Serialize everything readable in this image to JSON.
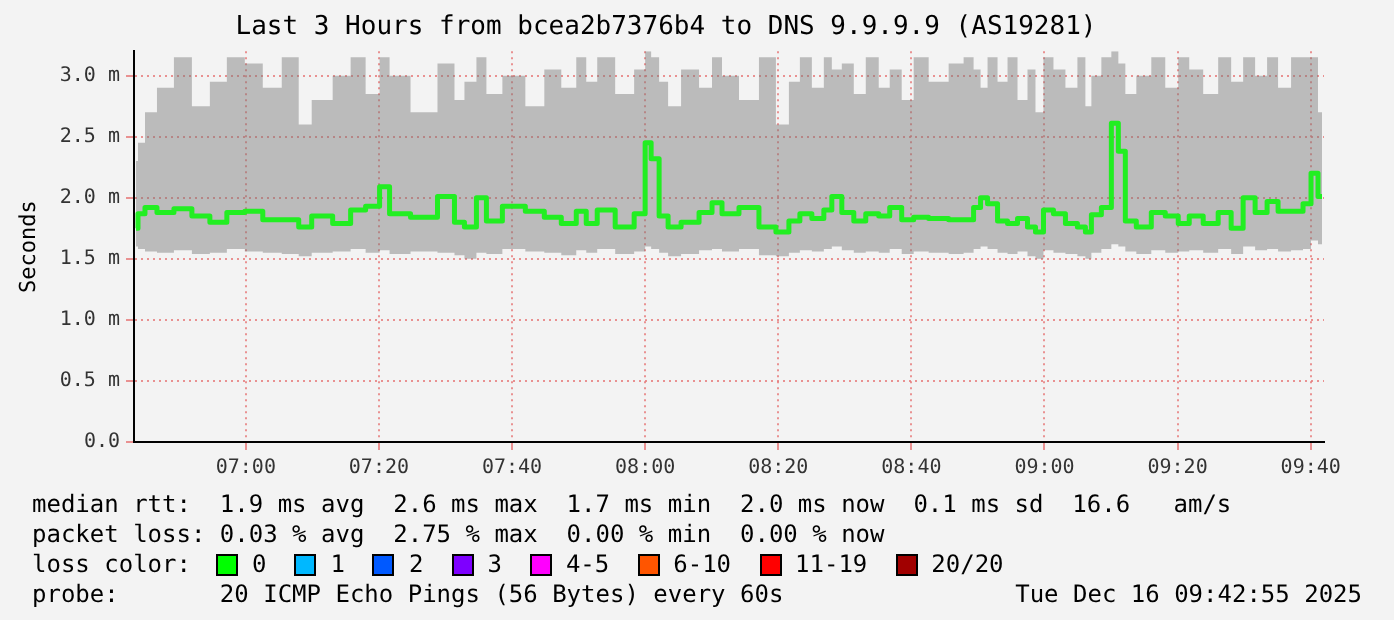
{
  "chart_data": {
    "type": "step",
    "title": "Last 3 Hours from bcea2b7376b4 to DNS 9.9.9.9 (AS19281)",
    "ylabel": "Seconds",
    "xlim": [
      6.72,
      9.7
    ],
    "xticks": [
      {
        "value": 7,
        "label": "07:00"
      },
      {
        "value": 7.3333,
        "label": "07:20"
      },
      {
        "value": 7.6667,
        "label": "07:40"
      },
      {
        "value": 8,
        "label": "08:00"
      },
      {
        "value": 8.3333,
        "label": "08:20"
      },
      {
        "value": 8.6667,
        "label": "08:40"
      },
      {
        "value": 9,
        "label": "09:00"
      },
      {
        "value": 9.3333,
        "label": "09:20"
      },
      {
        "value": 9.6667,
        "label": "09:40"
      }
    ],
    "ylim": [
      0,
      3.2
    ],
    "yticks": [
      {
        "value": 0,
        "label": "0.0"
      },
      {
        "value": 0.5,
        "label": "0.5 m"
      },
      {
        "value": 1,
        "label": "1.0 m"
      },
      {
        "value": 1.5,
        "label": "1.5 m"
      },
      {
        "value": 2,
        "label": "2.0 m"
      },
      {
        "value": 2.5,
        "label": "2.5 m"
      },
      {
        "value": 3,
        "label": "3.0 m"
      }
    ],
    "grid": true,
    "marker": "none",
    "x": [
      6.725,
      6.735,
      6.76,
      6.795,
      6.845,
      6.885,
      6.935,
      6.97,
      7.025,
      7.06,
      7.12,
      7.145,
      7.185,
      7.25,
      7.275,
      7.325,
      7.345,
      7.375,
      7.45,
      7.51,
      7.535,
      7.56,
      7.595,
      7.61,
      7.675,
      7.725,
      7.77,
      7.81,
      7.845,
      7.86,
      7.9,
      7.95,
      7.995,
      8.005,
      8.025,
      8.045,
      8.07,
      8.11,
      8.16,
      8.175,
      8.21,
      8.26,
      8.31,
      8.345,
      8.375,
      8.4,
      8.435,
      8.46,
      8.475,
      8.51,
      8.535,
      8.57,
      8.6,
      8.625,
      8.66,
      8.685,
      8.735,
      8.785,
      8.81,
      8.835,
      8.845,
      8.87,
      8.895,
      8.92,
      8.945,
      8.97,
      8.985,
      9.01,
      9.035,
      9.07,
      9.095,
      9.11,
      9.125,
      9.16,
      9.175,
      9.195,
      9.21,
      9.25,
      9.285,
      9.32,
      9.35,
      9.375,
      9.42,
      9.45,
      9.485,
      9.51,
      9.545,
      9.57,
      9.6,
      9.635,
      9.66,
      9.675,
      9.695
    ],
    "series": [
      {
        "color": "#22ee22",
        "values": [
          1.75,
          1.87,
          1.92,
          1.88,
          1.91,
          1.85,
          1.8,
          1.88,
          1.89,
          1.82,
          1.82,
          1.76,
          1.85,
          1.79,
          1.9,
          1.93,
          2.09,
          1.87,
          1.84,
          2.01,
          1.8,
          1.76,
          2,
          1.81,
          1.93,
          1.89,
          1.84,
          1.79,
          1.89,
          1.79,
          1.9,
          1.76,
          1.87,
          2.45,
          2.32,
          1.85,
          1.76,
          1.8,
          1.88,
          1.96,
          1.87,
          1.92,
          1.76,
          1.72,
          1.81,
          1.87,
          1.83,
          1.9,
          2.01,
          1.88,
          1.81,
          1.87,
          1.85,
          1.92,
          1.82,
          1.84,
          1.83,
          1.82,
          1.82,
          1.92,
          2,
          1.95,
          1.81,
          1.79,
          1.83,
          1.76,
          1.72,
          1.9,
          1.87,
          1.79,
          1.76,
          1.72,
          1.86,
          1.92,
          2.61,
          2.38,
          1.81,
          1.76,
          1.88,
          1.85,
          1.79,
          1.85,
          1.79,
          1.88,
          1.75,
          2,
          1.88,
          1.97,
          1.89,
          1.89,
          1.95,
          2.2,
          2.01
        ],
        "lower": [
          1.6,
          1.58,
          1.56,
          1.55,
          1.57,
          1.54,
          1.55,
          1.58,
          1.56,
          1.55,
          1.54,
          1.52,
          1.55,
          1.56,
          1.58,
          1.55,
          1.57,
          1.54,
          1.56,
          1.55,
          1.53,
          1.5,
          1.55,
          1.54,
          1.58,
          1.56,
          1.55,
          1.53,
          1.57,
          1.55,
          1.58,
          1.54,
          1.56,
          1.6,
          1.58,
          1.55,
          1.52,
          1.54,
          1.57,
          1.58,
          1.56,
          1.58,
          1.53,
          1.52,
          1.55,
          1.57,
          1.56,
          1.58,
          1.6,
          1.57,
          1.55,
          1.56,
          1.55,
          1.58,
          1.54,
          1.56,
          1.55,
          1.54,
          1.55,
          1.58,
          1.6,
          1.58,
          1.55,
          1.54,
          1.56,
          1.52,
          1.5,
          1.57,
          1.55,
          1.54,
          1.52,
          1.5,
          1.55,
          1.58,
          1.62,
          1.6,
          1.56,
          1.54,
          1.57,
          1.55,
          1.56,
          1.57,
          1.55,
          1.58,
          1.54,
          1.6,
          1.57,
          1.58,
          1.56,
          1.57,
          1.58,
          1.65,
          1.62
        ],
        "upper": [
          2.3,
          2.45,
          2.7,
          2.9,
          3.15,
          2.75,
          2.95,
          3.15,
          3.1,
          2.9,
          3.15,
          2.6,
          2.8,
          3,
          3.15,
          2.85,
          3.15,
          3,
          2.7,
          3.1,
          2.8,
          2.95,
          3.15,
          2.85,
          3,
          2.75,
          3.05,
          2.9,
          3.15,
          2.95,
          3.15,
          2.85,
          3.05,
          3.2,
          3.15,
          2.95,
          2.75,
          3.05,
          2.9,
          3.15,
          3,
          2.8,
          3.15,
          2.6,
          2.95,
          3.15,
          2.9,
          3.15,
          3.05,
          3.1,
          2.85,
          3.15,
          2.9,
          3.05,
          2.8,
          3.15,
          2.95,
          3.1,
          3.15,
          3.05,
          2.9,
          3.15,
          2.95,
          3.15,
          2.8,
          3.05,
          2.7,
          3.15,
          3.05,
          2.9,
          3.15,
          2.75,
          3,
          3.15,
          3.2,
          3.1,
          2.85,
          3,
          3.15,
          2.9,
          3.15,
          3.05,
          2.85,
          3.15,
          2.95,
          3.15,
          3,
          3.15,
          2.9,
          3.15,
          3.15,
          3.15,
          2.7
        ]
      }
    ],
    "annotations": [
      "median rtt:  1.9 ms avg  2.6 ms max  1.7 ms min  2.0 ms now  0.1 ms sd  16.6   am/s",
      "packet loss: 0.03 % avg  2.75 % max  0.00 % min  0.00 % now",
      "loss color:",
      "0",
      "1",
      "2",
      "3",
      "4-5",
      "6-10",
      "11-19",
      "20/20",
      "probe:       20 ICMP Echo Pings (56 Bytes) every 60s",
      "Tue Dec 16 09:42:55 2025"
    ]
  }
}
